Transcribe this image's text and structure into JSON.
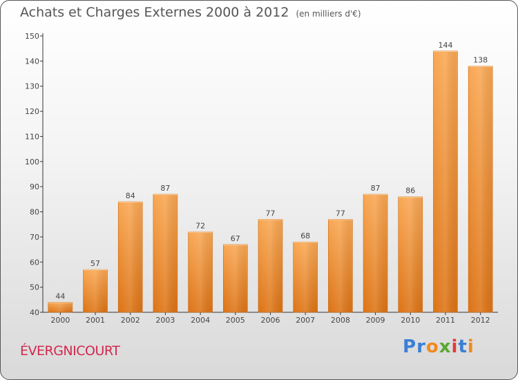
{
  "title": "Achats et Charges Externes 2000 à 2012",
  "subtitle": "(en milliers d'€)",
  "commune": "ÉVERGNICOURT",
  "logo": {
    "text": "Proxiti",
    "letters": [
      {
        "char": "P",
        "color": "#3a7fd5"
      },
      {
        "char": "r",
        "color": "#3a7fd5"
      },
      {
        "char": "o",
        "color": "#f08a1e"
      },
      {
        "char": "x",
        "color": "#5aa832"
      },
      {
        "char": "i",
        "color": "#e23b3b"
      },
      {
        "char": "t",
        "color": "#3a7fd5"
      },
      {
        "char": "i",
        "color": "#f08a1e"
      }
    ]
  },
  "colors": {
    "bar_light": "#f8a450",
    "bar_dark": "#e07a1c",
    "bar_edge": "#c86a14",
    "commune_text": "#d2284e"
  },
  "chart_data": {
    "type": "bar",
    "title": "Achats et Charges Externes 2000 à 2012",
    "xlabel": "",
    "ylabel": "",
    "categories": [
      "2000",
      "2001",
      "2002",
      "2003",
      "2004",
      "2005",
      "2006",
      "2007",
      "2008",
      "2009",
      "2010",
      "2011",
      "2012"
    ],
    "values": [
      44,
      57,
      84,
      87,
      72,
      67,
      77,
      68,
      77,
      87,
      86,
      144,
      138
    ],
    "ylim": [
      40,
      150
    ],
    "yticks": [
      40,
      50,
      60,
      70,
      80,
      90,
      100,
      110,
      120,
      130,
      140,
      150
    ],
    "grid": false
  }
}
